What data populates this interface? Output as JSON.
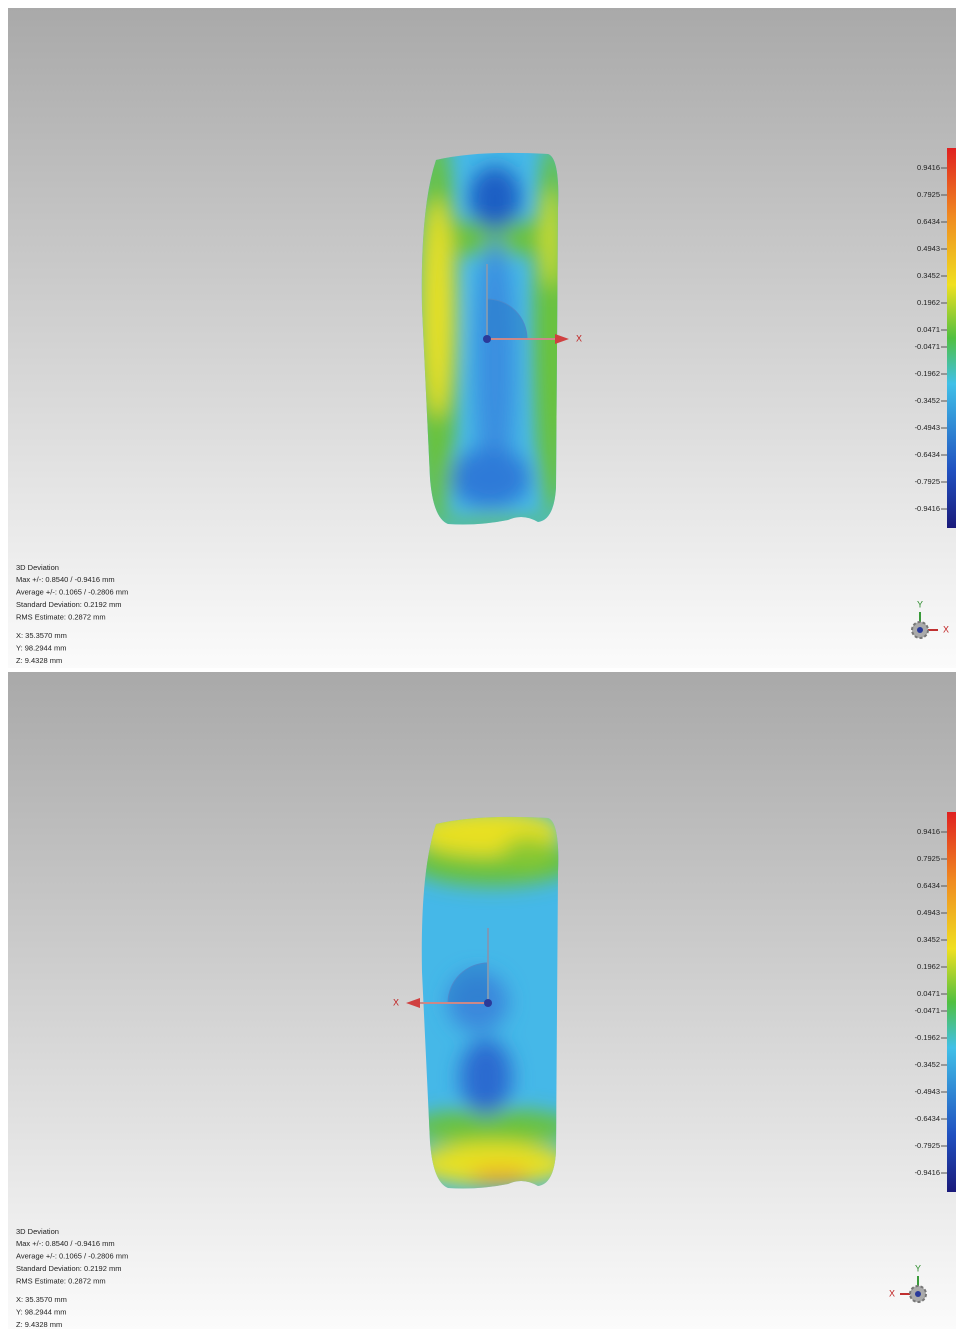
{
  "panels": [
    {
      "legend": {
        "labels": [
          "0.9416",
          "0.7925",
          "0.6434",
          "0.4943",
          "0.3452",
          "0.1962",
          "0.0471",
          "-0.0471",
          "-0.1962",
          "-0.3452",
          "-0.4943",
          "-0.6434",
          "-0.7925",
          "-0.9416"
        ]
      },
      "info": {
        "title": "3D Deviation",
        "lines": [
          "Max +/-: 0.8540 / -0.9416 mm",
          "Average +/-: 0.1065 / -0.2806 mm",
          "Standard Deviation: 0.2192 mm",
          "RMS Estimate: 0.2872 mm"
        ]
      },
      "coordinates": [
        "X:  35.3570 mm",
        "Y:  98.2944 mm",
        "Z:  9.4328 mm"
      ],
      "triad_axis_labels": {
        "x": "X",
        "y": "Y"
      },
      "view_axis_label": "X"
    },
    {
      "legend": {
        "labels": [
          "0.9416",
          "0.7925",
          "0.6434",
          "0.4943",
          "0.3452",
          "0.1962",
          "0.0471",
          "-0.0471",
          "-0.1962",
          "-0.3452",
          "-0.4943",
          "-0.6434",
          "-0.7925",
          "-0.9416"
        ]
      },
      "info": {
        "title": "3D Deviation",
        "lines": [
          "Max +/-: 0.8540 / -0.9416 mm",
          "Average +/-: 0.1065 / -0.2806 mm",
          "Standard Deviation: 0.2192 mm",
          "RMS Estimate: 0.2872 mm"
        ]
      },
      "coordinates": [
        "X:  35.3570 mm",
        "Y:  98.2944 mm",
        "Z:  9.4328 mm"
      ],
      "triad_axis_labels": {
        "x": "X",
        "y": "Y"
      },
      "view_axis_label": "X"
    }
  ]
}
